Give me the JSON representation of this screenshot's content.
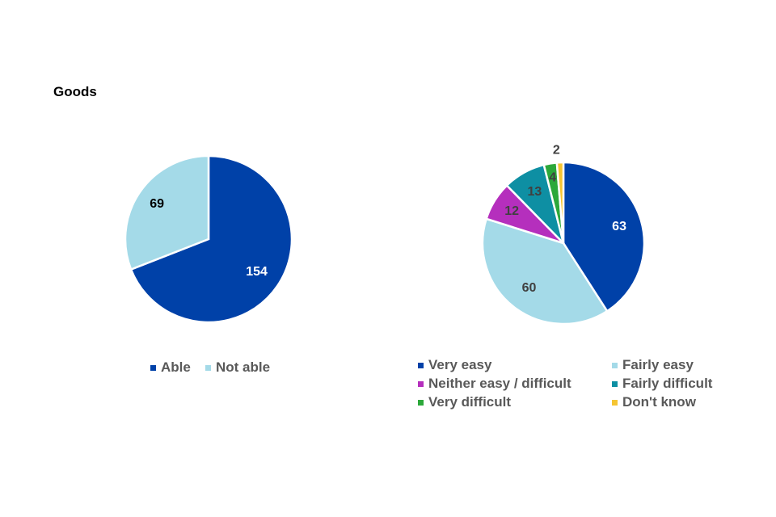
{
  "page": {
    "title": "Goods"
  },
  "chart_data": [
    {
      "type": "pie",
      "categories": [
        "Able",
        "Not able"
      ],
      "values": [
        154,
        69
      ],
      "colors": [
        "#0041A8",
        "#A4DAE8"
      ],
      "label_colors": [
        "#ffffff",
        "#000000"
      ],
      "legend_position": "bottom"
    },
    {
      "type": "pie",
      "categories": [
        "Very easy",
        "Fairly easy",
        "Neither easy / difficult",
        "Fairly difficult",
        "Very difficult",
        "Don't know"
      ],
      "values": [
        63,
        60,
        12,
        13,
        4,
        2
      ],
      "colors": [
        "#0041A8",
        "#A4DAE8",
        "#B52FBD",
        "#0E8FA3",
        "#2CA83A",
        "#F5C533"
      ],
      "label_colors": [
        "#ffffff",
        "#404040",
        "#404040",
        "#404040",
        "#404040",
        "#404040"
      ],
      "legend_position": "bottom"
    }
  ]
}
